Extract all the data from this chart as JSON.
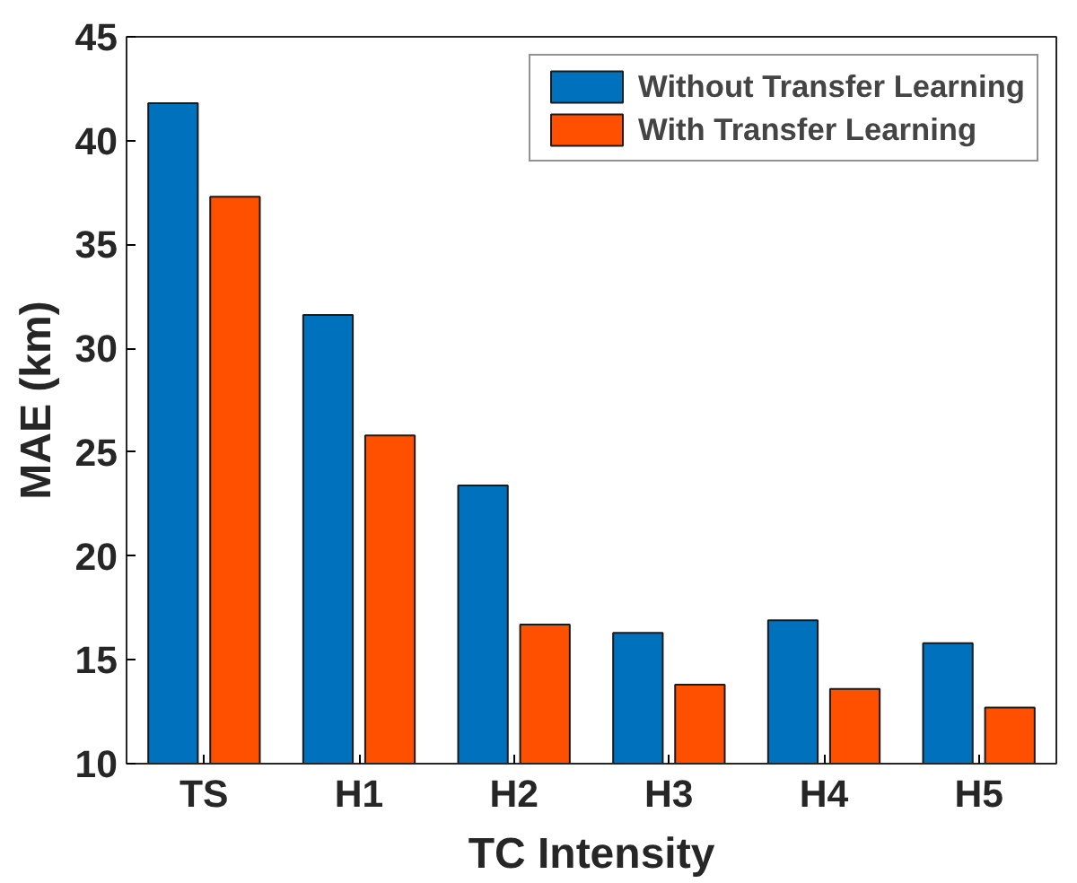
{
  "chart_data": {
    "type": "bar",
    "xlabel": "TC Intensity",
    "ylabel": "MAE (km)",
    "categories": [
      "TS",
      "H1",
      "H2",
      "H3",
      "H4",
      "H5"
    ],
    "series": [
      {
        "name": "Without Transfer Learning",
        "color": "#0072bd",
        "values": [
          41.8,
          31.6,
          23.4,
          16.3,
          16.9,
          15.8
        ]
      },
      {
        "name": "With Transfer Learning",
        "color": "#ff5000",
        "values": [
          37.3,
          25.8,
          16.7,
          13.8,
          13.6,
          12.7
        ]
      }
    ],
    "ylim": [
      10,
      45
    ],
    "yticks": [
      10,
      15,
      20,
      25,
      30,
      35,
      40,
      45
    ],
    "grid": false,
    "legend": "top right"
  }
}
